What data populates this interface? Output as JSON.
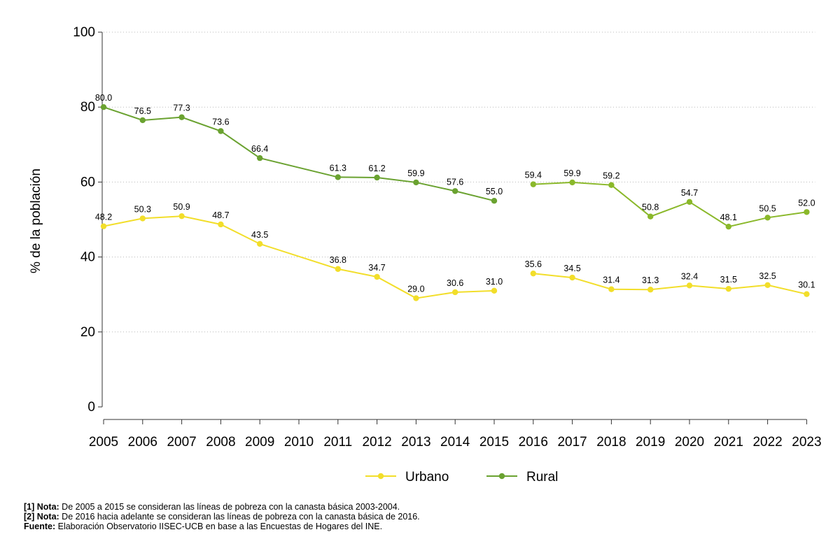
{
  "chart_data": {
    "type": "line",
    "title": "",
    "xlabel": "",
    "ylabel": "% de la población",
    "ylim": [
      0,
      100
    ],
    "yticks": [
      0,
      20,
      40,
      60,
      80,
      100
    ],
    "categories": [
      "2005",
      "2006",
      "2007",
      "2008",
      "2009",
      "2010",
      "2011",
      "2012",
      "2013",
      "2014",
      "2015",
      "2016",
      "2017",
      "2018",
      "2019",
      "2020",
      "2021",
      "2022",
      "2023"
    ],
    "grid": true,
    "legend_position": "bottom-center",
    "series": [
      {
        "name": "Urbano",
        "color": "#f2de2a",
        "segments": [
          {
            "x": [
              "2005",
              "2006",
              "2007",
              "2008",
              "2009",
              "2011",
              "2012",
              "2013",
              "2014",
              "2015"
            ],
            "y": [
              48.2,
              50.3,
              50.9,
              48.7,
              43.5,
              36.8,
              34.7,
              29.0,
              30.6,
              31.0
            ],
            "labels": [
              "48.2",
              "50.3",
              "50.9",
              "48.7",
              "43.5",
              "36.8",
              "34.7",
              "29.0",
              "30.6",
              "31.0"
            ]
          },
          {
            "x": [
              "2016",
              "2017",
              "2018",
              "2019",
              "2020",
              "2021",
              "2022",
              "2023"
            ],
            "y": [
              35.6,
              34.5,
              31.4,
              31.3,
              32.4,
              31.5,
              32.5,
              30.1
            ],
            "labels": [
              "35.6",
              "34.5",
              "31.4",
              "31.3",
              "32.4",
              "31.5",
              "32.5",
              "30.1"
            ]
          }
        ]
      },
      {
        "name": "Rural",
        "color": "#6aa230",
        "color2": "#8ab82a",
        "segments": [
          {
            "x": [
              "2005",
              "2006",
              "2007",
              "2008",
              "2009",
              "2011",
              "2012",
              "2013",
              "2014",
              "2015"
            ],
            "y": [
              80.0,
              76.5,
              77.3,
              73.6,
              66.4,
              61.3,
              61.2,
              59.9,
              57.6,
              55.0
            ],
            "labels": [
              "80.0",
              "76.5",
              "77.3",
              "73.6",
              "66.4",
              "61.3",
              "61.2",
              "59.9",
              "57.6",
              "55.0"
            ]
          },
          {
            "x": [
              "2016",
              "2017",
              "2018",
              "2019",
              "2020",
              "2021",
              "2022",
              "2023"
            ],
            "y": [
              59.4,
              59.9,
              59.2,
              50.8,
              54.7,
              48.1,
              50.5,
              52.0
            ],
            "labels": [
              "59.4",
              "59.9",
              "59.2",
              "50.8",
              "54.7",
              "48.1",
              "50.5",
              "52.0"
            ]
          }
        ]
      }
    ]
  },
  "notes": {
    "note1_label": "[1] Nota:",
    "note1_text": " De 2005 a 2015 se consideran las líneas de pobreza con la canasta básica 2003-2004.",
    "note2_label": "[2] Nota:",
    "note2_text": " De 2016 hacia adelante se consideran las líneas de pobreza con la canasta básica de 2016.",
    "source_label": "Fuente:",
    "source_text": " Elaboración Observatorio IISEC-UCB en base a las Encuestas de Hogares del INE."
  }
}
